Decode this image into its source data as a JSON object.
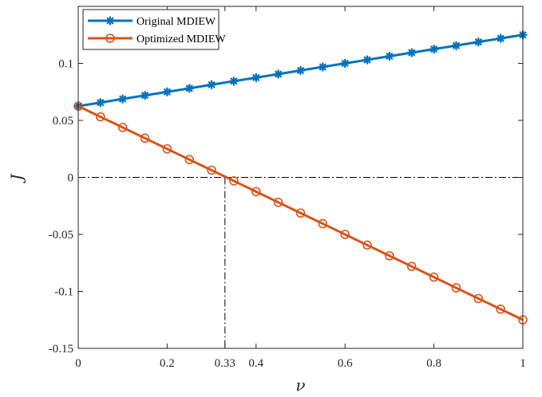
{
  "chart_data": {
    "type": "line",
    "xlabel": "ν",
    "ylabel": "J",
    "xlim": [
      0,
      1
    ],
    "ylim": [
      -0.15,
      0.15
    ],
    "xticks": [
      0,
      0.2,
      0.33,
      0.4,
      0.6,
      0.8,
      1
    ],
    "xtick_labels": [
      "0",
      "0.2",
      "0.33",
      "0.4",
      "0.6",
      "0.8",
      "1"
    ],
    "yticks": [
      -0.15,
      -0.1,
      -0.05,
      0,
      0.05,
      0.1
    ],
    "ytick_labels": [
      "-0.15",
      "-0.1",
      "-0.05",
      "0",
      "0.05",
      "0.1"
    ],
    "grid": false,
    "legend_position": "top-left",
    "reference_lines": [
      {
        "type": "horizontal",
        "y": 0,
        "style": "dash-dot"
      },
      {
        "type": "vertical",
        "x": 0.33,
        "style": "dash-dot"
      }
    ],
    "x": [
      0,
      0.05,
      0.1,
      0.15,
      0.2,
      0.25,
      0.3,
      0.35,
      0.4,
      0.45,
      0.5,
      0.55,
      0.6,
      0.65,
      0.7,
      0.75,
      0.8,
      0.85,
      0.9,
      0.95,
      1
    ],
    "series": [
      {
        "name": "Original MDIEW",
        "color": "#0072BD",
        "marker": "asterisk",
        "values": [
          0.0625,
          0.0656,
          0.0688,
          0.0719,
          0.075,
          0.0781,
          0.0813,
          0.0844,
          0.0875,
          0.0906,
          0.0938,
          0.0969,
          0.1,
          0.1031,
          0.1063,
          0.1094,
          0.1125,
          0.1156,
          0.1188,
          0.1219,
          0.125
        ]
      },
      {
        "name": "Optimized MDIEW",
        "color": "#D95319",
        "marker": "circle",
        "values": [
          0.0625,
          0.0531,
          0.0438,
          0.0344,
          0.025,
          0.0156,
          0.0063,
          -0.0031,
          -0.0125,
          -0.0219,
          -0.0313,
          -0.0406,
          -0.05,
          -0.0594,
          -0.0688,
          -0.0781,
          -0.0875,
          -0.0969,
          -0.1063,
          -0.1156,
          -0.125
        ]
      }
    ]
  }
}
